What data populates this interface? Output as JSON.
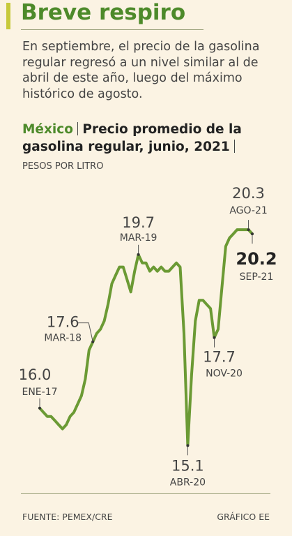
{
  "header": {
    "title": "Breve respiro",
    "subtitle": "En septiembre, el precio de la gasolina regular regresó a un nivel similar al de abril de este año, luego del máximo histórico de agosto."
  },
  "chart_data": {
    "type": "line",
    "title_prefix": "México",
    "title": "Precio promedio de la gasolina regular, junio, 2021",
    "y_label": "PESOS POR LITRO",
    "color": "#6b9a34",
    "ylim": [
      14.5,
      21
    ],
    "categories": [
      "ENE-17",
      null,
      null,
      null,
      null,
      null,
      null,
      null,
      null,
      null,
      null,
      null,
      null,
      null,
      "MAR-18",
      null,
      null,
      null,
      null,
      null,
      null,
      null,
      null,
      null,
      null,
      null,
      "MAR-19",
      null,
      null,
      null,
      null,
      null,
      null,
      null,
      null,
      null,
      null,
      null,
      null,
      "ABR-20",
      null,
      null,
      null,
      null,
      null,
      null,
      "NOV-20",
      null,
      null,
      null,
      null,
      null,
      null,
      null,
      null,
      "AGO-21",
      "SEP-21"
    ],
    "values": [
      16.0,
      15.9,
      15.8,
      15.8,
      15.7,
      15.6,
      15.5,
      15.6,
      15.8,
      15.9,
      16.1,
      16.3,
      16.7,
      17.4,
      17.6,
      17.8,
      17.9,
      18.1,
      18.5,
      19.0,
      19.2,
      19.4,
      19.4,
      19.1,
      18.8,
      19.3,
      19.7,
      19.5,
      19.5,
      19.3,
      19.4,
      19.3,
      19.4,
      19.3,
      19.3,
      19.4,
      19.5,
      19.4,
      17.8,
      15.1,
      16.8,
      18.1,
      18.6,
      18.6,
      18.5,
      18.4,
      17.7,
      17.9,
      18.9,
      19.9,
      20.1,
      20.2,
      20.3,
      20.3,
      20.3,
      20.3,
      20.2
    ],
    "value_labels": [
      "16.0",
      null,
      null,
      null,
      null,
      null,
      null,
      null,
      null,
      null,
      null,
      null,
      null,
      null,
      "17.6",
      null,
      null,
      null,
      null,
      null,
      null,
      null,
      null,
      null,
      null,
      null,
      "19.7",
      null,
      null,
      null,
      null,
      null,
      null,
      null,
      null,
      null,
      null,
      null,
      null,
      "15.1",
      null,
      null,
      null,
      null,
      null,
      null,
      "17.7",
      null,
      null,
      null,
      null,
      null,
      null,
      null,
      null,
      "20.3",
      "20.2"
    ]
  },
  "footer": {
    "source": "FUENTE: PEMEX/CRE",
    "credit": "GRÁFICO EE"
  }
}
